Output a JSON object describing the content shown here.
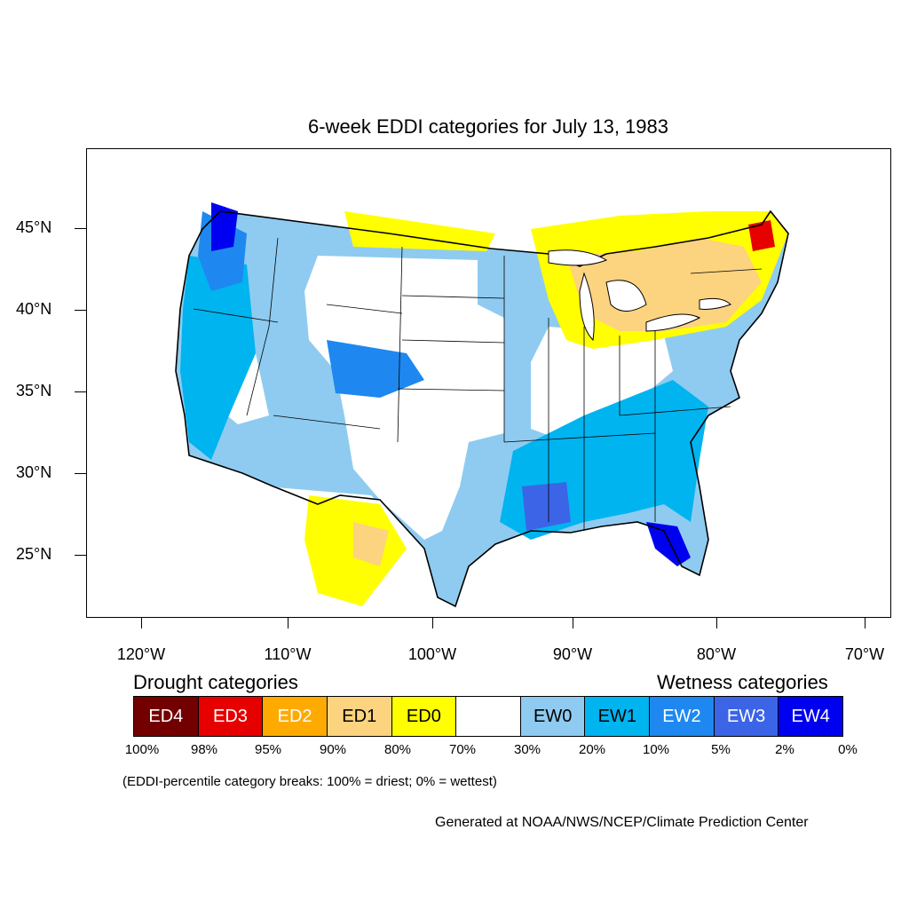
{
  "map": {
    "title": "6-week EDDI categories for July 13, 1983",
    "lat_labels": [
      "45°N",
      "40°N",
      "35°N",
      "30°N",
      "25°N"
    ],
    "lon_labels": [
      "120°W",
      "110°W",
      "100°W",
      "90°W",
      "80°W",
      "70°W"
    ]
  },
  "legend": {
    "drought_heading": "Drought categories",
    "wetness_heading": "Wetness categories",
    "categories": [
      {
        "label": "ED4",
        "color": "#730000",
        "text_color": "#ffffff"
      },
      {
        "label": "ED3",
        "color": "#e60000",
        "text_color": "#ffffff"
      },
      {
        "label": "ED2",
        "color": "#ffaa00",
        "text_color": "#ffffff"
      },
      {
        "label": "ED1",
        "color": "#fcd37f",
        "text_color": "#000000"
      },
      {
        "label": "ED0",
        "color": "#ffff00",
        "text_color": "#000000"
      },
      {
        "label": "",
        "color": "#ffffff",
        "text_color": "#000000"
      },
      {
        "label": "EW0",
        "color": "#8fcbf0",
        "text_color": "#000000"
      },
      {
        "label": "EW1",
        "color": "#00b4f0",
        "text_color": "#000000"
      },
      {
        "label": "EW2",
        "color": "#1e88f0",
        "text_color": "#ffffff"
      },
      {
        "label": "EW3",
        "color": "#3c64e6",
        "text_color": "#ffffff"
      },
      {
        "label": "EW4",
        "color": "#0000f0",
        "text_color": "#ffffff"
      }
    ],
    "breaks": [
      "100%",
      "98%",
      "95%",
      "90%",
      "80%",
      "70%",
      "30%",
      "20%",
      "10%",
      "5%",
      "2%",
      "0%"
    ],
    "note": "(EDDI-percentile category breaks: 100% = driest; 0% = wettest)"
  },
  "credit": "Generated at NOAA/NWS/NCEP/Climate Prediction Center"
}
